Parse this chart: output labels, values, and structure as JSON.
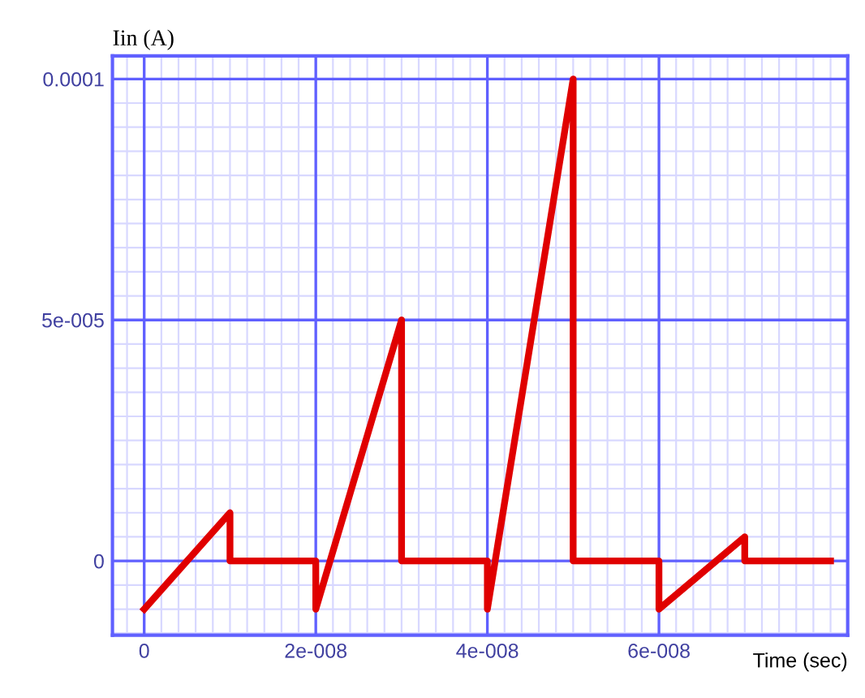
{
  "chart_data": {
    "type": "line",
    "xlabel": "Time (sec)",
    "ylabel": "Iin (A)",
    "x": [
      0,
      1e-08,
      1e-08,
      2e-08,
      2e-08,
      3e-08,
      3e-08,
      4e-08,
      4e-08,
      5e-08,
      5e-08,
      6e-08,
      6e-08,
      7e-08,
      7e-08,
      8e-08
    ],
    "series": [
      {
        "color": "#e00000",
        "values": [
          -1e-05,
          1e-05,
          0,
          0,
          -1e-05,
          5e-05,
          0,
          0,
          -1e-05,
          0.0001,
          0,
          0,
          -1e-05,
          5e-06,
          0,
          0
        ]
      }
    ],
    "xlim": [
      -3.7e-09,
      8.2e-08
    ],
    "ylim": [
      -1.54e-05,
      0.0001048
    ],
    "xticks": [
      0,
      {
        "value": 2e-08,
        "label": "2e-008"
      },
      {
        "value": 4e-08,
        "label": "4e-008"
      },
      {
        "value": 6e-08,
        "label": "6e-008"
      }
    ],
    "yticks": [
      0,
      {
        "value": 5e-05,
        "label": "5e-005"
      },
      {
        "value": 0.0001,
        "label": "0.0001"
      }
    ],
    "grid": true,
    "marker": "none",
    "line_style": "solid"
  }
}
